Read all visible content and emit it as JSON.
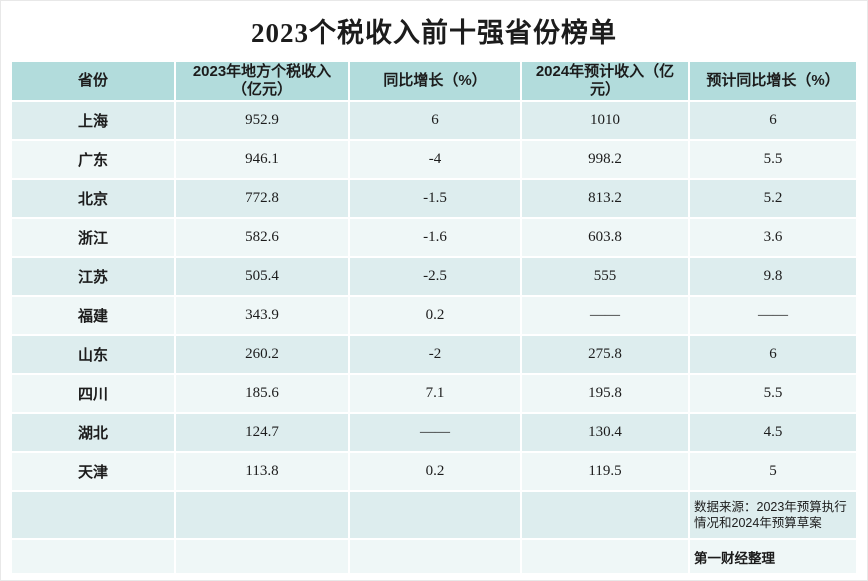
{
  "title": "2023个税收入前十强省份榜单",
  "chart_data": {
    "type": "table",
    "title": "2023个税收入前十强省份榜单",
    "columns": [
      "省份",
      "2023年地方个税收入（亿元）",
      "同比增长（%）",
      "2024年预计收入（亿元）",
      "预计同比增长（%）"
    ],
    "rows": [
      [
        "上海",
        "952.9",
        "6",
        "1010",
        "6"
      ],
      [
        "广东",
        "946.1",
        "-4",
        "998.2",
        "5.5"
      ],
      [
        "北京",
        "772.8",
        "-1.5",
        "813.2",
        "5.2"
      ],
      [
        "浙江",
        "582.6",
        "-1.6",
        "603.8",
        "3.6"
      ],
      [
        "江苏",
        "505.4",
        "-2.5",
        "555",
        "9.8"
      ],
      [
        "福建",
        "343.9",
        "0.2",
        "——",
        "——"
      ],
      [
        "山东",
        "260.2",
        "-2",
        "275.8",
        "6"
      ],
      [
        "四川",
        "185.6",
        "7.1",
        "195.8",
        "5.5"
      ],
      [
        "湖北",
        "124.7",
        "——",
        "130.4",
        "4.5"
      ],
      [
        "天津",
        "113.8",
        "0.2",
        "119.5",
        "5"
      ]
    ],
    "footnotes": {
      "source": "数据来源：2023年预算执行情况和2024年预算草案",
      "credit": "第一财经整理"
    }
  },
  "colors": {
    "header_bg": "#b2dcdc",
    "row_odd_bg": "#ddedee",
    "row_even_bg": "#eff7f7",
    "text": "#1c1c1c"
  }
}
